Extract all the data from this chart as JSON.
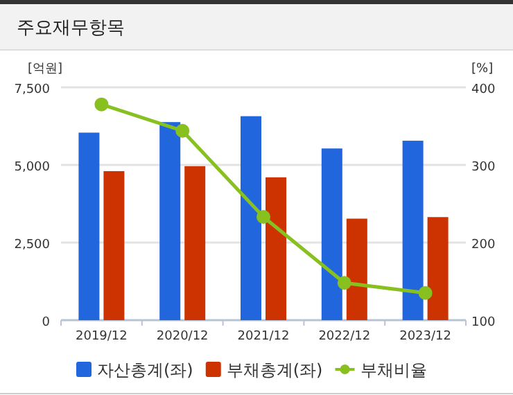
{
  "chart_data": {
    "type": "bar",
    "title": "주요재무항목",
    "ylabel": "[억원]",
    "y2label": "[%]",
    "categories": [
      "2019/12",
      "2020/12",
      "2021/12",
      "2022/12",
      "2023/12"
    ],
    "series": [
      {
        "name": "자산총계(좌)",
        "color": "#2266dd",
        "values": [
          6040,
          6380,
          6570,
          5530,
          5780
        ]
      },
      {
        "name": "부채총계(좌)",
        "color": "#cc3300",
        "values": [
          4800,
          4960,
          4600,
          3270,
          3320
        ]
      },
      {
        "name": "부채비율",
        "type": "line",
        "axis": "y2",
        "color": "#88c020",
        "marker": "circle",
        "values": [
          378,
          344,
          233,
          148,
          135
        ]
      }
    ],
    "ylim": [
      0,
      7500
    ],
    "yticks": [
      0,
      {
        "value": 2500,
        "label": "2,500"
      },
      {
        "value": 5000,
        "label": "5,000"
      },
      {
        "value": 7500,
        "label": "7,500"
      }
    ],
    "y2lim": [
      100,
      400
    ],
    "y2ticks": [
      100,
      200,
      300,
      400
    ],
    "grid": "y",
    "legend": "bottom"
  }
}
